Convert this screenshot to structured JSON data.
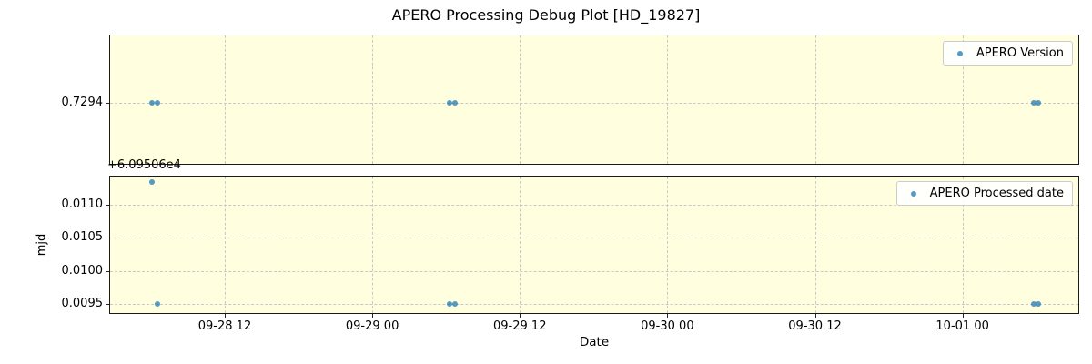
{
  "title": "APERO Processing Debug Plot [HD_19827]",
  "x_axis": {
    "label": "Date",
    "tick_labels": [
      "09-28 12",
      "09-29 00",
      "09-29 12",
      "09-30 00",
      "09-30 12",
      "10-01 00"
    ],
    "tick_hours": [
      12,
      24,
      36,
      48,
      60,
      72
    ],
    "xlim_hours": [
      2.6,
      81.5
    ],
    "epoch_note": "hours after 09-28 00:00"
  },
  "chart_data": [
    {
      "type": "scatter",
      "legend_label": "APERO Version",
      "legend_position": "upper right",
      "grid": true,
      "x_hours": [
        6.1,
        6.5,
        30.3,
        30.7,
        77.8,
        78.2
      ],
      "x_dates_approx": [
        "09-28 06:06",
        "09-28 06:30",
        "09-29 06:18",
        "09-29 06:42",
        "10-01 05:48",
        "10-01 06:12"
      ],
      "values": [
        0.7294,
        0.7294,
        0.7294,
        0.7294,
        0.7294,
        0.7294
      ],
      "ylim": [
        0.72902,
        0.72982
      ],
      "yticks": [
        0.7294
      ],
      "ytick_labels": [
        "0.7294"
      ]
    },
    {
      "type": "scatter",
      "legend_label": "APERO Processed date",
      "legend_position": "upper right",
      "grid": true,
      "ylabel": "mjd",
      "y_offset_text": "+6.09506e4",
      "x_hours": [
        6.1,
        6.5,
        30.3,
        30.7,
        77.8,
        78.2
      ],
      "values": [
        0.011344,
        0.0095,
        0.0095,
        0.0095,
        0.0095,
        0.0095
      ],
      "ylim": [
        0.009349,
        0.011441
      ],
      "yticks": [
        0.0095,
        0.01,
        0.0105,
        0.011
      ],
      "ytick_labels": [
        "0.0095",
        "0.0100",
        "0.0105",
        "0.0110"
      ]
    }
  ],
  "colors": {
    "plot_background": "#ffffe0",
    "marker_rgba": "rgba(31,119,180,0.75)",
    "grid": "#c8c8c8",
    "axis_border": "#1a1a1a",
    "legend_border": "#cccccc",
    "legend_background": "rgba(255,255,255,0.85)"
  }
}
